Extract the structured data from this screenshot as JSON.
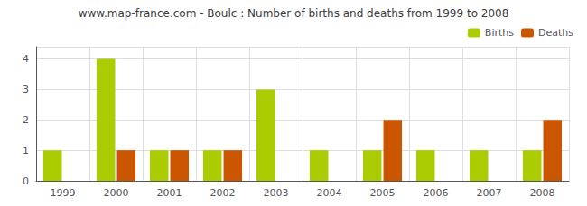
{
  "chart_data": {
    "type": "bar",
    "title": "www.map-france.com - Boulc : Number of births and deaths from 1999 to 2008",
    "categories": [
      "1999",
      "2000",
      "2001",
      "2002",
      "2003",
      "2004",
      "2005",
      "2006",
      "2007",
      "2008"
    ],
    "series": [
      {
        "name": "Births",
        "color": "#aacc00",
        "values": [
          1,
          4,
          1,
          1,
          3,
          1,
          1,
          1,
          1,
          1
        ]
      },
      {
        "name": "Deaths",
        "color": "#cc5500",
        "values": [
          0,
          1,
          1,
          1,
          0,
          0,
          2,
          0,
          0,
          2
        ]
      }
    ],
    "ylim": [
      0,
      4.4
    ],
    "yticks": [
      0,
      1,
      2,
      3,
      4
    ],
    "grid": true,
    "legend": "upper right"
  }
}
